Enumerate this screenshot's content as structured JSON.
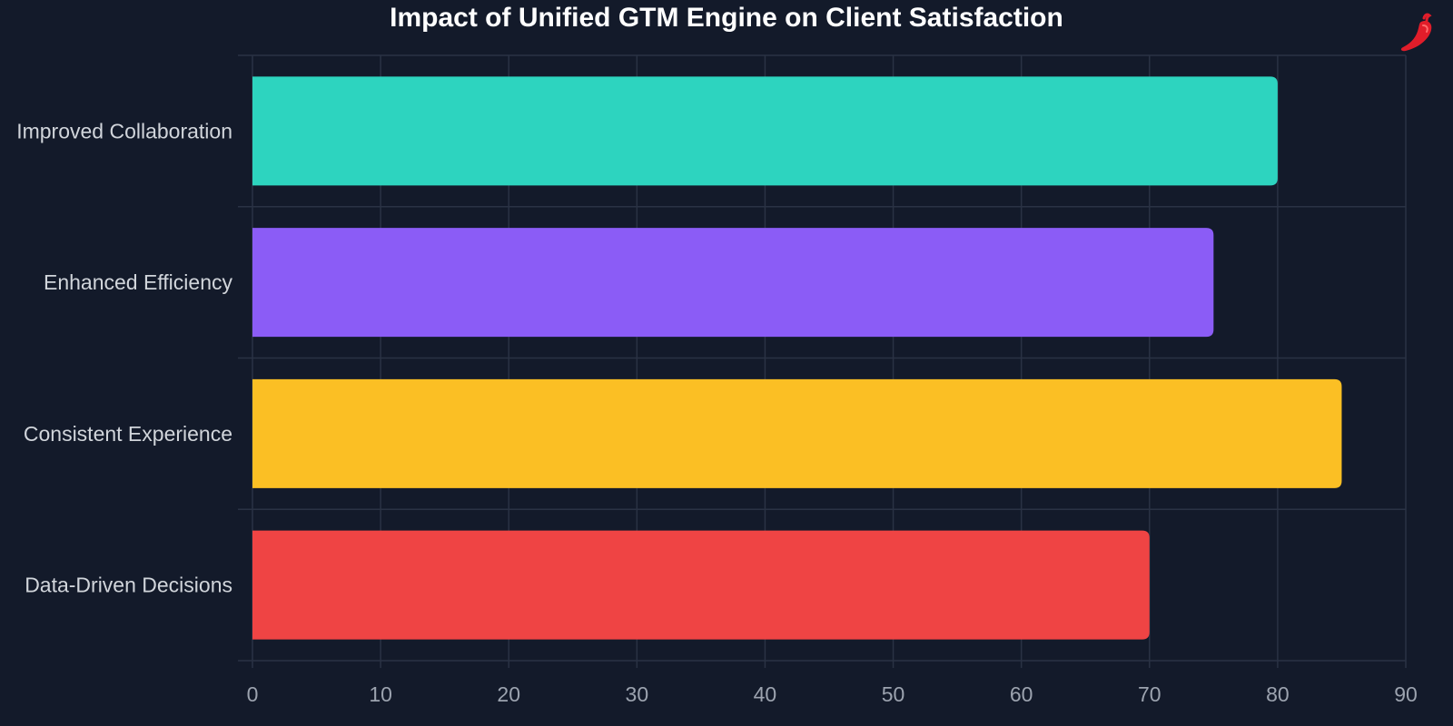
{
  "chart_data": {
    "type": "bar",
    "orientation": "horizontal",
    "title": "Impact of Unified GTM Engine on Client Satisfaction",
    "xlabel": "",
    "ylabel": "",
    "categories": [
      "Improved Collaboration",
      "Enhanced Efficiency",
      "Consistent Experience",
      "Data-Driven Decisions"
    ],
    "values": [
      80,
      75,
      85,
      70
    ],
    "colors": [
      "#2dd4bf",
      "#8b5cf6",
      "#fbbf24",
      "#ef4444"
    ],
    "xlim": [
      0,
      90
    ],
    "xticks": [
      0,
      10,
      20,
      30,
      40,
      50,
      60,
      70,
      80,
      90
    ],
    "grid": true,
    "legend": "none"
  },
  "style": {
    "background": "#131a2a",
    "grid_color": "#2a3244",
    "category_label_color": "#d1d5db",
    "tick_label_color": "#9ca3af",
    "logo_icon": "chili-pepper-icon",
    "logo_color": "#e11d2a"
  }
}
